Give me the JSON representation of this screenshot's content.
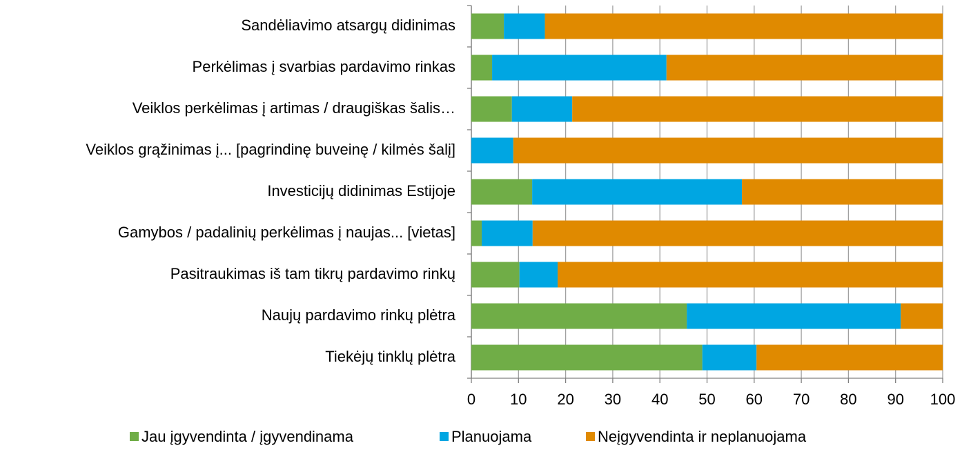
{
  "chart_data": {
    "type": "stacked-barh",
    "categories": [
      "Sandėliavimo atsargų didinimas",
      "Perkėlimas į svarbias pardavimo rinkas",
      "Veiklos perkėlimas į artimas / draugiškas šalis…",
      "Veiklos grąžinimas į... [pagrindinę buveinę / kilmės šalį]",
      "Investicijų didinimas Estijoje",
      "Gamybos / padalinių perkėlimas į naujas... [vietas]",
      "Pasitraukimas iš tam tikrų pardavimo rinkų",
      "Naujų pardavimo rinkų plėtra",
      "Tiekėjų tinklų plėtra"
    ],
    "series": [
      {
        "name": "Jau įgyvendinta / įgyvendinama",
        "color": "#70ad47",
        "values": [
          6.9,
          4.4,
          8.6,
          0,
          12.9,
          2.2,
          10.2,
          45.7,
          49.0
        ]
      },
      {
        "name": "Planuojama",
        "color": "#00a6e2",
        "values": [
          8.7,
          37.0,
          12.8,
          8.9,
          44.5,
          10.8,
          8.1,
          45.4,
          11.5
        ]
      },
      {
        "name": "Neįgyvendinta ir neplanuojama",
        "color": "#e08a00",
        "values": [
          84.4,
          58.6,
          78.6,
          91.1,
          42.6,
          87.0,
          81.7,
          8.9,
          39.5
        ]
      }
    ],
    "xlim": [
      0,
      100
    ],
    "xticks": [
      0,
      10,
      20,
      30,
      40,
      50,
      60,
      70,
      80,
      90,
      100
    ],
    "grid": true,
    "legend": "bottom"
  }
}
